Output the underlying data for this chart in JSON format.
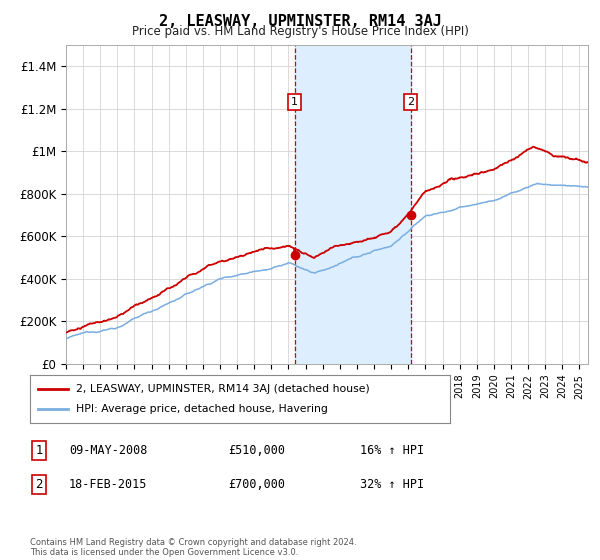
{
  "title": "2, LEASWAY, UPMINSTER, RM14 3AJ",
  "subtitle": "Price paid vs. HM Land Registry's House Price Index (HPI)",
  "legend_line1": "2, LEASWAY, UPMINSTER, RM14 3AJ (detached house)",
  "legend_line2": "HPI: Average price, detached house, Havering",
  "transaction1_date": "09-MAY-2008",
  "transaction1_price": "£510,000",
  "transaction1_hpi": "16% ↑ HPI",
  "transaction1_year": 2008.36,
  "transaction1_value": 510000,
  "transaction2_date": "18-FEB-2015",
  "transaction2_price": "£700,000",
  "transaction2_hpi": "32% ↑ HPI",
  "transaction2_year": 2015.13,
  "transaction2_value": 700000,
  "red_color": "#cc0000",
  "blue_color": "#7aade0",
  "shade_color": "#ddeeff",
  "footer_text": "Contains HM Land Registry data © Crown copyright and database right 2024.\nThis data is licensed under the Open Government Licence v3.0.",
  "ylim": [
    0,
    1500000
  ],
  "yticks": [
    0,
    200000,
    400000,
    600000,
    800000,
    1000000,
    1200000,
    1400000
  ],
  "ytick_labels": [
    "£0",
    "£200K",
    "£400K",
    "£600K",
    "£800K",
    "£1M",
    "£1.2M",
    "£1.4M"
  ],
  "xlim_min": 1995,
  "xlim_max": 2025.5
}
